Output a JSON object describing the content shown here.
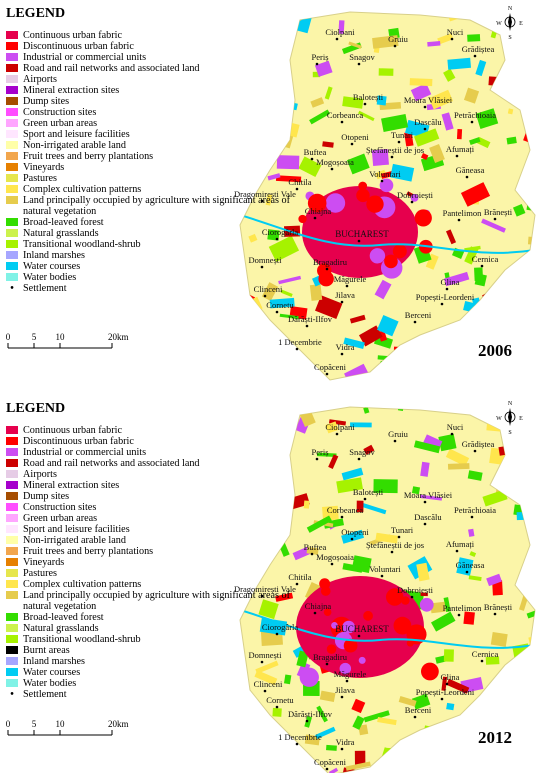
{
  "panels": [
    {
      "legend_title": "LEGEND",
      "year": "2006",
      "legend": [
        {
          "label": "Continuous urban fabric",
          "color": "#e6004d"
        },
        {
          "label": "Discontinuous urban fabric",
          "color": "#ff0000"
        },
        {
          "label": "Industrial or commercial units",
          "color": "#cc4df2"
        },
        {
          "label": "Road and rail networks and associated land",
          "color": "#cc0000"
        },
        {
          "label": "Airports",
          "color": "#e6cce6"
        },
        {
          "label": "Mineral extraction sites",
          "color": "#a600cc"
        },
        {
          "label": "Dump sites",
          "color": "#a64d00"
        },
        {
          "label": "Construction sites",
          "color": "#ff4dff"
        },
        {
          "label": "Green urban areas",
          "color": "#ffa6ff"
        },
        {
          "label": "Sport and leisure facilities",
          "color": "#ffe6ff"
        },
        {
          "label": "Non-irrigated arable land",
          "color": "#ffffa8"
        },
        {
          "label": "Fruit trees and berry plantations",
          "color": "#f2a64d"
        },
        {
          "label": "Vineyards",
          "color": "#e68000"
        },
        {
          "label": "Pastures",
          "color": "#e6e64d"
        },
        {
          "label": "Complex cultivation patterns",
          "color": "#ffe64d"
        },
        {
          "label": "Land principally occupied by agriculture with significant areas of natural vegetation",
          "color": "#e6cc4d"
        },
        {
          "label": "Broad-leaved forest",
          "color": "#33dd00"
        },
        {
          "label": "Natural grasslands",
          "color": "#ccf24d"
        },
        {
          "label": "Transitional woodland-shrub",
          "color": "#a6f200"
        },
        {
          "label": "Inland marshes",
          "color": "#a6a6ff"
        },
        {
          "label": "Water courses",
          "color": "#00ccf2"
        },
        {
          "label": "Water bodies",
          "color": "#80f2e6"
        },
        {
          "label": "Settlement",
          "color": "#000000"
        }
      ],
      "places": [
        "Ciolpani",
        "Gruiu",
        "Nuci",
        "Snagov",
        "Periș",
        "Grădiștea",
        "Balotești",
        "Moara Vlăsiei",
        "Petrăchioaia",
        "Corbeanca",
        "Dascălu",
        "Otopeni",
        "Tunari",
        "Ștefăneștii de jos",
        "Afumați",
        "Buftea",
        "Mogoșoaia",
        "Găneasa",
        "Chitila",
        "Voluntari",
        "Dragomirești Vale",
        "Dobroiești",
        "Brănești",
        "Pantelimon",
        "Chiajna",
        "BUCHAREST",
        "Ciorogârla",
        "Domnești",
        "Bragadiru",
        "Cernica",
        "Clinceni",
        "Măgurele",
        "Glina",
        "Cornetu",
        "Jilava",
        "Popești-Leordeni",
        "Dărăști-Ilfov",
        "Berceni",
        "1 Decembrie",
        "Vidra",
        "Copăceni"
      ],
      "scale": [
        "0",
        "5",
        "10",
        "20km"
      ],
      "compass": [
        "N",
        "E",
        "S",
        "W"
      ]
    },
    {
      "legend_title": "LEGEND",
      "year": "2012",
      "legend": [
        {
          "label": "Continuous urban fabric",
          "color": "#e6004d"
        },
        {
          "label": "Discontinuous urban fabric",
          "color": "#ff0000"
        },
        {
          "label": "Industrial or commercial units",
          "color": "#cc4df2"
        },
        {
          "label": "Road and rail networks and associated land",
          "color": "#cc0000"
        },
        {
          "label": "Airports",
          "color": "#e6cce6"
        },
        {
          "label": "Mineral extraction sites",
          "color": "#a600cc"
        },
        {
          "label": "Dump sites",
          "color": "#a64d00"
        },
        {
          "label": "Construction sites",
          "color": "#ff4dff"
        },
        {
          "label": "Green urban areas",
          "color": "#ffa6ff"
        },
        {
          "label": "Sport and leisure facilities",
          "color": "#ffe6ff"
        },
        {
          "label": "Non-irrigated arable land",
          "color": "#ffffa8"
        },
        {
          "label": "Fruit trees and berry plantations",
          "color": "#f2a64d"
        },
        {
          "label": "Vineyards",
          "color": "#e68000"
        },
        {
          "label": "Pastures",
          "color": "#e6e64d"
        },
        {
          "label": "Complex cultivation patterns",
          "color": "#ffe64d"
        },
        {
          "label": "Land principally occupied by agriculture with significant areas of natural vegetation",
          "color": "#e6cc4d"
        },
        {
          "label": "Broad-leaved forest",
          "color": "#33dd00"
        },
        {
          "label": "Natural grasslands",
          "color": "#ccf24d"
        },
        {
          "label": "Transitional woodland-shrub",
          "color": "#a6f200"
        },
        {
          "label": "Burnt areas",
          "color": "#000000"
        },
        {
          "label": "Inland marshes",
          "color": "#a6a6ff"
        },
        {
          "label": "Water courses",
          "color": "#00ccf2"
        },
        {
          "label": "Water bodies",
          "color": "#80f2e6"
        },
        {
          "label": "Settlement",
          "color": "#000000"
        }
      ],
      "places": [
        "Ciolpani",
        "Gruiu",
        "Nuci",
        "Snagov",
        "Periș",
        "Grădiștea",
        "Balotești",
        "Moara Vlăsiei",
        "Petrăchioaia",
        "Corbeanca",
        "Dascălu",
        "Otopeni",
        "Tunari",
        "Ștefăneștii de jos",
        "Afumați",
        "Buftea",
        "Mogoșoaia",
        "Găneasa",
        "Chitila",
        "Voluntari",
        "Dragomirești Vale",
        "Dobroiești",
        "Brănești",
        "Pantelimon",
        "Chiajna",
        "BUCHAREST",
        "Ciorogârla",
        "Domnești",
        "Bragadiru",
        "Cernica",
        "Clinceni",
        "Măgurele",
        "Glina",
        "Cornetu",
        "Jilava",
        "Popești-Leordeni",
        "Dărăști-Ilfov",
        "Berceni",
        "1 Decembrie",
        "Vidra",
        "Copăceni"
      ],
      "scale": [
        "0",
        "5",
        "10",
        "20km"
      ],
      "compass": [
        "N",
        "E",
        "S",
        "W"
      ]
    }
  ]
}
